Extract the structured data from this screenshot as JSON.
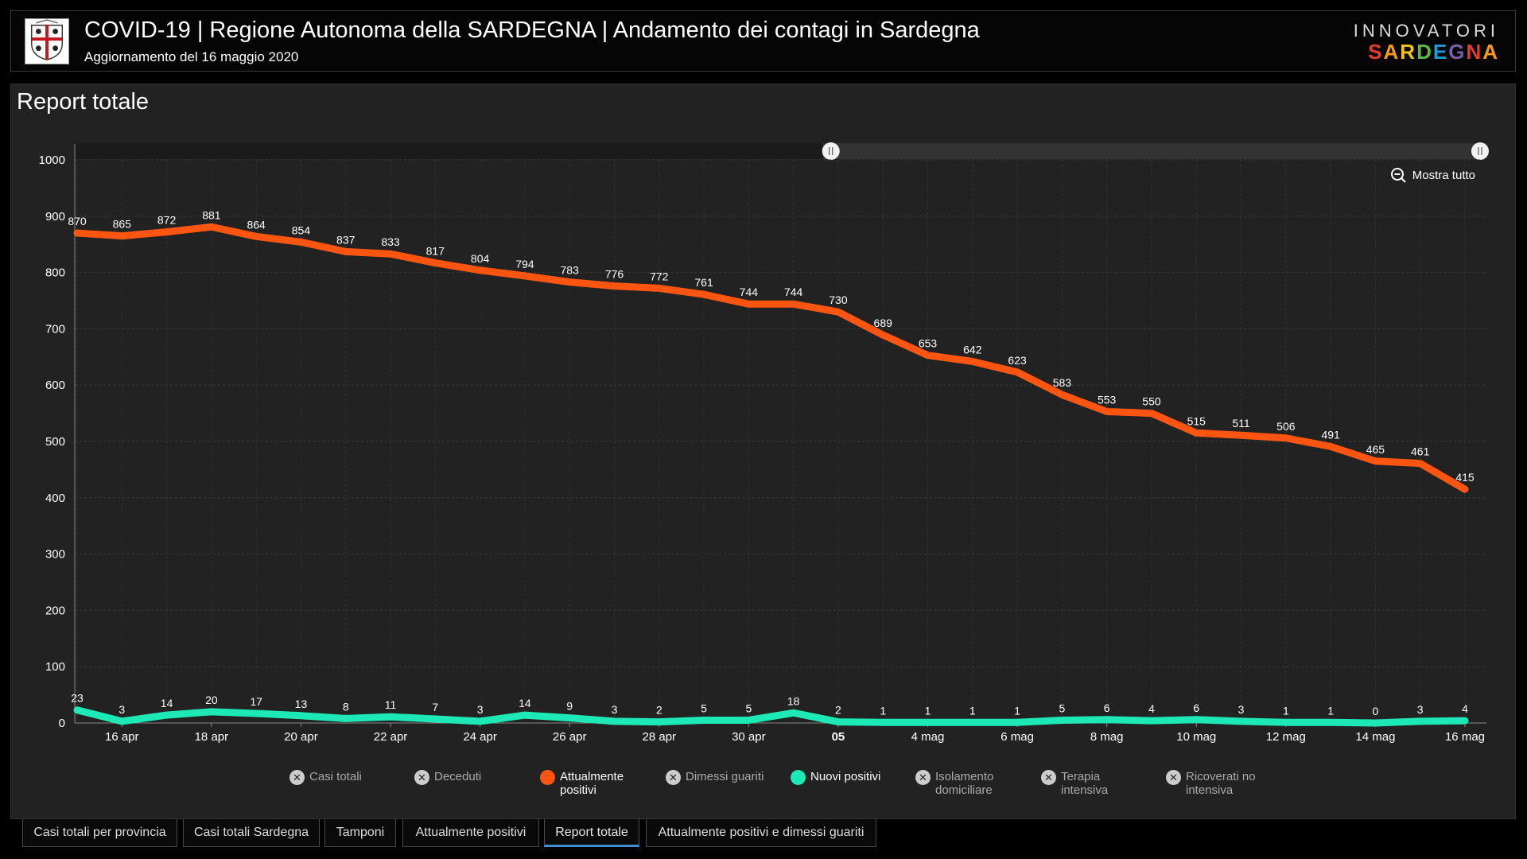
{
  "header": {
    "title": "COVID-19 | Regione Autonoma della SARDEGNA | Andamento dei contagi in Sardegna",
    "subtitle": "Aggiornamento del 16 maggio 2020",
    "logo_top": "INNOVATORI",
    "logo_bottom_letters": [
      {
        "ch": "S",
        "color": "#e63a2e"
      },
      {
        "ch": "A",
        "color": "#f39a1e"
      },
      {
        "ch": "R",
        "color": "#f2c21b"
      },
      {
        "ch": "D",
        "color": "#5cb848"
      },
      {
        "ch": "E",
        "color": "#1d9bd7"
      },
      {
        "ch": "G",
        "color": "#7a5ca8"
      },
      {
        "ch": "N",
        "color": "#e63a2e"
      },
      {
        "ch": "A",
        "color": "#f39a1e"
      }
    ]
  },
  "panel": {
    "title": "Report totale"
  },
  "zoom": {
    "label": "Mostra tutto"
  },
  "legend": [
    {
      "label": "Casi totali",
      "active": false,
      "color": "#cccccc"
    },
    {
      "label": "Deceduti",
      "active": false,
      "color": "#cccccc"
    },
    {
      "label": "Attualmente positivi",
      "active": true,
      "color": "#ff5511"
    },
    {
      "label": "Dimessi guariti",
      "active": false,
      "color": "#cccccc"
    },
    {
      "label": "Nuovi positivi",
      "active": true,
      "color": "#1de9b6"
    },
    {
      "label": "Isolamento domiciliare",
      "active": false,
      "color": "#cccccc"
    },
    {
      "label": "Terapia intensiva",
      "active": false,
      "color": "#cccccc"
    },
    {
      "label": "Ricoverati no intensiva",
      "active": false,
      "color": "#cccccc"
    }
  ],
  "tabs": [
    {
      "label": "Casi totali per provincia",
      "active": false
    },
    {
      "label": "Casi totali Sardegna",
      "active": false
    },
    {
      "label": "Tamponi",
      "active": false
    },
    {
      "label": "Attualmente positivi",
      "active": false
    },
    {
      "label": "Report totale",
      "active": true
    },
    {
      "label": "Attualmente positivi e dimessi guariti",
      "active": false
    }
  ],
  "chart_data": {
    "type": "line",
    "title": "Report totale",
    "x_start": "2020-04-15",
    "x_end": "2020-05-16",
    "xlabel": "",
    "ylabel": "",
    "ylim": [
      0,
      1000
    ],
    "yticks": [
      0,
      100,
      200,
      300,
      400,
      500,
      600,
      700,
      800,
      900,
      1000
    ],
    "xticks": [
      {
        "label": "16 apr",
        "index": 1,
        "bold": false
      },
      {
        "label": "18 apr",
        "index": 3,
        "bold": false
      },
      {
        "label": "20 apr",
        "index": 5,
        "bold": false
      },
      {
        "label": "22 apr",
        "index": 7,
        "bold": false
      },
      {
        "label": "24 apr",
        "index": 9,
        "bold": false
      },
      {
        "label": "26 apr",
        "index": 11,
        "bold": false
      },
      {
        "label": "28 apr",
        "index": 13,
        "bold": false
      },
      {
        "label": "30 apr",
        "index": 15,
        "bold": false
      },
      {
        "label": "05",
        "index": 17,
        "bold": true
      },
      {
        "label": "4 mag",
        "index": 19,
        "bold": false
      },
      {
        "label": "6 mag",
        "index": 21,
        "bold": false
      },
      {
        "label": "8 mag",
        "index": 23,
        "bold": false
      },
      {
        "label": "10 mag",
        "index": 25,
        "bold": false
      },
      {
        "label": "12 mag",
        "index": 27,
        "bold": false
      },
      {
        "label": "14 mag",
        "index": 29,
        "bold": false
      },
      {
        "label": "16 mag",
        "index": 31,
        "bold": false
      }
    ],
    "grid": true,
    "legend_position": "bottom",
    "scrollbar_range": [
      0.53,
      1.0
    ],
    "series": [
      {
        "name": "Attualmente positivi",
        "color": "#ff5511",
        "values": [
          870,
          865,
          872,
          881,
          864,
          854,
          837,
          833,
          817,
          804,
          794,
          783,
          776,
          772,
          761,
          744,
          744,
          730,
          689,
          653,
          642,
          623,
          583,
          553,
          550,
          515,
          511,
          506,
          491,
          465,
          461,
          415
        ]
      },
      {
        "name": "Nuovi positivi",
        "color": "#1de9b6",
        "values": [
          23,
          3,
          14,
          20,
          17,
          13,
          8,
          11,
          7,
          3,
          14,
          9,
          3,
          2,
          5,
          5,
          18,
          2,
          1,
          1,
          1,
          1,
          5,
          6,
          4,
          6,
          3,
          1,
          1,
          0,
          3,
          4
        ]
      }
    ]
  }
}
